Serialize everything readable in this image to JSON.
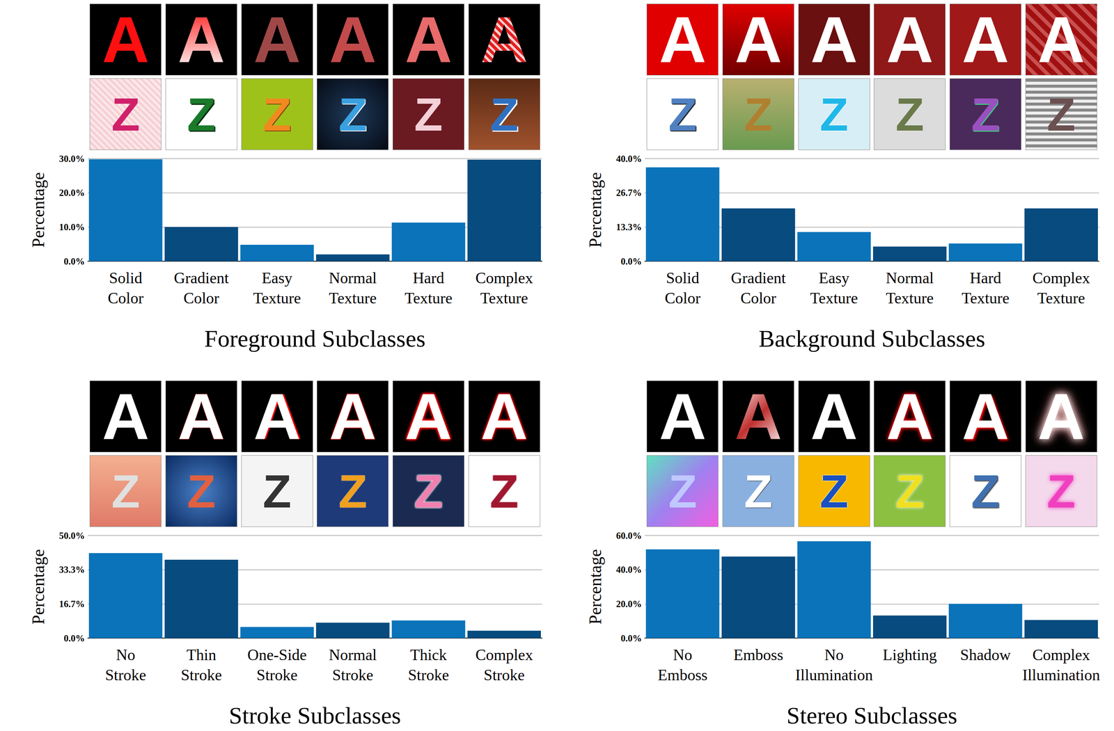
{
  "chart_data": [
    {
      "type": "bar",
      "x_label": "Foreground Subclasses",
      "y_label": "Percentage",
      "sample_letters": [
        "A",
        "Z"
      ],
      "categories": [
        "Solid Color",
        "Gradient Color",
        "Easy Texture",
        "Normal Texture",
        "Hard Texture",
        "Complex Texture"
      ],
      "values": [
        29.8,
        10.0,
        4.8,
        2.0,
        11.3,
        29.7
      ],
      "colors": [
        "#0a73ba",
        "#074b7f",
        "#0a73ba",
        "#074b7f",
        "#0a73ba",
        "#074b7f"
      ],
      "ylim": [
        0,
        30
      ],
      "yticks": [
        {
          "value": 0,
          "label": "0.0%"
        },
        {
          "value": 10,
          "label": "10.0%"
        },
        {
          "value": 20,
          "label": "20.0%"
        },
        {
          "value": 30,
          "label": "30.0%"
        }
      ],
      "grid": true
    },
    {
      "type": "bar",
      "x_label": "Background Subclasses",
      "y_label": "Percentage",
      "sample_letters": [
        "A",
        "Z"
      ],
      "categories": [
        "Solid Color",
        "Gradient Color",
        "Easy Texture",
        "Normal Texture",
        "Hard Texture",
        "Complex Texture"
      ],
      "values": [
        36.6,
        20.6,
        11.4,
        5.7,
        6.9,
        20.6
      ],
      "colors": [
        "#0a73ba",
        "#074b7f",
        "#0a73ba",
        "#074b7f",
        "#0a73ba",
        "#074b7f"
      ],
      "ylim": [
        0,
        40
      ],
      "yticks": [
        {
          "value": 0,
          "label": "0.0%"
        },
        {
          "value": 13.33,
          "label": "13.3%"
        },
        {
          "value": 26.67,
          "label": "26.7%"
        },
        {
          "value": 40,
          "label": "40.0%"
        }
      ],
      "grid": true
    },
    {
      "type": "bar",
      "x_label": "Stroke Subclasses",
      "y_label": "Percentage",
      "sample_letters": [
        "A",
        "Z"
      ],
      "categories": [
        "No Stroke",
        "Thin Stroke",
        "One-Side Stroke",
        "Normal Stroke",
        "Thick Stroke",
        "Complex Stroke"
      ],
      "values": [
        41.4,
        38.2,
        5.4,
        7.5,
        8.6,
        3.6
      ],
      "colors": [
        "#0a73ba",
        "#074b7f",
        "#0a73ba",
        "#074b7f",
        "#0a73ba",
        "#074b7f"
      ],
      "ylim": [
        0,
        50
      ],
      "yticks": [
        {
          "value": 0,
          "label": "0.0%"
        },
        {
          "value": 16.67,
          "label": "16.7%"
        },
        {
          "value": 33.33,
          "label": "33.3%"
        },
        {
          "value": 50,
          "label": "50.0%"
        }
      ],
      "grid": true
    },
    {
      "type": "bar",
      "x_label": "Stereo Subclasses",
      "y_label": "Percentage",
      "sample_letters": [
        "A",
        "Z"
      ],
      "categories": [
        "No Emboss",
        "Emboss",
        "No Illumination",
        "Lighting",
        "Shadow",
        "Complex Illumination"
      ],
      "values": [
        51.9,
        47.7,
        56.6,
        13.2,
        20.0,
        10.6
      ],
      "colors": [
        "#0a73ba",
        "#074b7f",
        "#0a73ba",
        "#074b7f",
        "#0a73ba",
        "#074b7f"
      ],
      "ylim": [
        0,
        60
      ],
      "yticks": [
        {
          "value": 0,
          "label": "0.0%"
        },
        {
          "value": 20,
          "label": "20.0%"
        },
        {
          "value": 40,
          "label": "40.0%"
        },
        {
          "value": 60,
          "label": "60.0%"
        }
      ],
      "grid": true
    }
  ]
}
